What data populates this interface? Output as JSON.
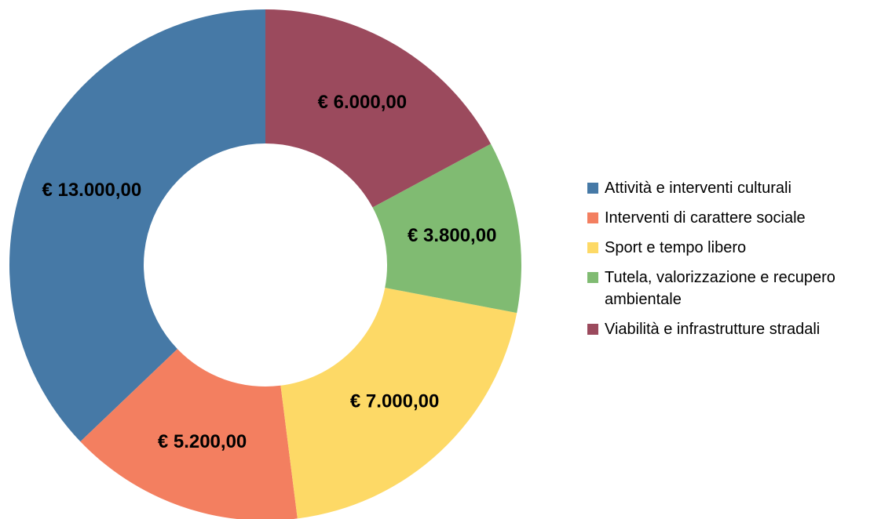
{
  "chart_data": {
    "type": "donut",
    "categories": [
      "Attività e interventi culturali",
      "Interventi di carattere sociale",
      "Sport e tempo libero",
      "Tutela, valorizzazione e recupero ambientale",
      "Viabilità e infrastrutture stradali"
    ],
    "values": [
      13000,
      5200,
      7000,
      3800,
      6000
    ],
    "value_labels": [
      "€ 13.000,00",
      "€ 5.200,00",
      "€ 7.000,00",
      "€ 3.800,00",
      "€ 6.000,00"
    ],
    "colors": [
      "#4679a6",
      "#f37f60",
      "#fdd966",
      "#80bb72",
      "#9b4a5d"
    ],
    "direction": "counterclockwise",
    "legend": "right"
  }
}
